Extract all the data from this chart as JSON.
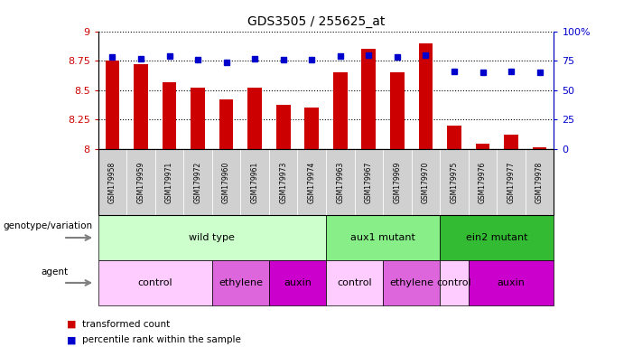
{
  "title": "GDS3505 / 255625_at",
  "samples": [
    "GSM179958",
    "GSM179959",
    "GSM179971",
    "GSM179972",
    "GSM179960",
    "GSM179961",
    "GSM179973",
    "GSM179974",
    "GSM179963",
    "GSM179967",
    "GSM179969",
    "GSM179970",
    "GSM179975",
    "GSM179976",
    "GSM179977",
    "GSM179978"
  ],
  "bar_values": [
    8.75,
    8.72,
    8.57,
    8.52,
    8.42,
    8.52,
    8.38,
    8.35,
    8.65,
    8.85,
    8.65,
    8.9,
    8.2,
    8.05,
    8.12,
    8.02
  ],
  "percentile_values": [
    78,
    77,
    79,
    76,
    74,
    77,
    76,
    76,
    79,
    80,
    78,
    80,
    66,
    65,
    66,
    65
  ],
  "bar_color": "#CC0000",
  "dot_color": "#0000CC",
  "ylim_left": [
    8.0,
    9.0
  ],
  "ylim_right": [
    0,
    100
  ],
  "yticks_left": [
    8.0,
    8.25,
    8.5,
    8.75,
    9.0
  ],
  "yticks_right": [
    0,
    25,
    50,
    75,
    100
  ],
  "ytick_labels_left": [
    "8",
    "8.25",
    "8.5",
    "8.75",
    "9"
  ],
  "ytick_labels_right": [
    "0",
    "25",
    "50",
    "75",
    "100%"
  ],
  "genotype_groups": [
    {
      "label": "wild type",
      "start": 0,
      "end": 8,
      "color": "#ccffcc"
    },
    {
      "label": "aux1 mutant",
      "start": 8,
      "end": 12,
      "color": "#88ee88"
    },
    {
      "label": "ein2 mutant",
      "start": 12,
      "end": 16,
      "color": "#33bb33"
    }
  ],
  "agent_groups": [
    {
      "label": "control",
      "start": 0,
      "end": 4,
      "color": "#ffccff"
    },
    {
      "label": "ethylene",
      "start": 4,
      "end": 6,
      "color": "#dd66dd"
    },
    {
      "label": "auxin",
      "start": 6,
      "end": 8,
      "color": "#cc00cc"
    },
    {
      "label": "control",
      "start": 8,
      "end": 10,
      "color": "#ffccff"
    },
    {
      "label": "ethylene",
      "start": 10,
      "end": 12,
      "color": "#dd66dd"
    },
    {
      "label": "control",
      "start": 12,
      "end": 13,
      "color": "#ffccff"
    },
    {
      "label": "auxin",
      "start": 13,
      "end": 16,
      "color": "#cc00cc"
    }
  ],
  "legend_bar_label": "transformed count",
  "legend_dot_label": "percentile rank within the sample",
  "genotype_label": "genotype/variation",
  "agent_label": "agent",
  "background_color": "#ffffff",
  "tick_label_color_left": "#CC0000",
  "tick_label_color_right": "#0000CC",
  "xlabel_bg_color": "#d0d0d0",
  "n_samples": 16
}
